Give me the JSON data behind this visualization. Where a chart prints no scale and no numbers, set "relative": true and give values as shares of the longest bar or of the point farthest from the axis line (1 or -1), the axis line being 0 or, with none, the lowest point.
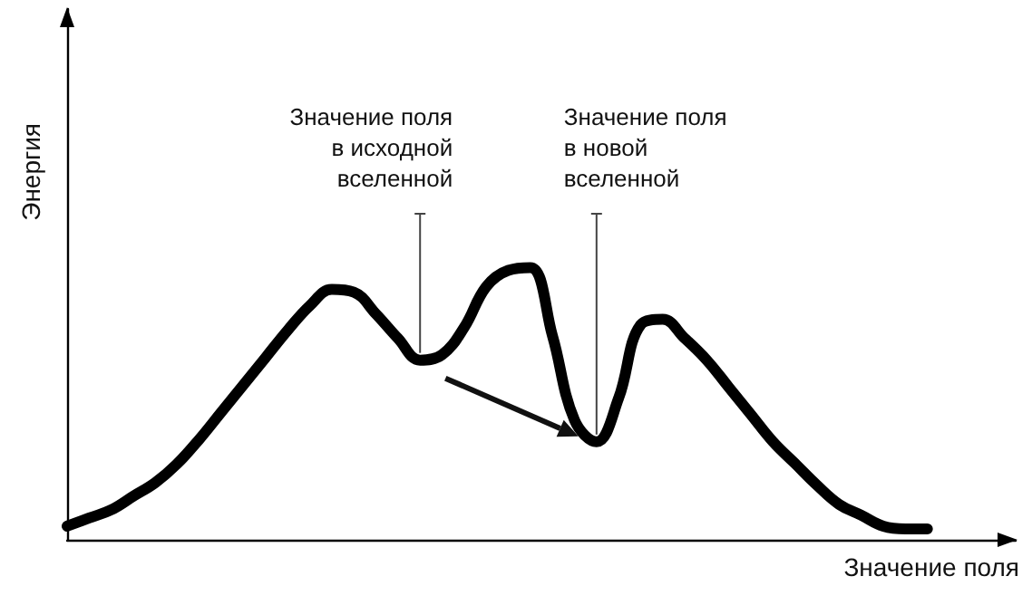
{
  "chart_data": {
    "type": "line",
    "relative": true,
    "xlabel": "Значение поля",
    "ylabel": "Энергия",
    "annotations": [
      "Значение поля\nв исходной\nвселенной",
      "Значение поля\nв новой\nвселенной"
    ],
    "categories": [
      null,
      null,
      null,
      null,
      null,
      null,
      null,
      null,
      null,
      null,
      null,
      null,
      null,
      null,
      null,
      null,
      null,
      null,
      null,
      null,
      null,
      null,
      null,
      null,
      null,
      null,
      null,
      null,
      null,
      null,
      null,
      null,
      null,
      null,
      null,
      null,
      null,
      null,
      null,
      null,
      null,
      null,
      null,
      null
    ],
    "series": [
      {
        "color": "#000000",
        "values": [
          0.05,
          0.08,
          0.11,
          0.16,
          0.21,
          0.28,
          0.37,
          0.47,
          0.57,
          0.67,
          0.77,
          0.86,
          0.92,
          0.91,
          0.83,
          0.74,
          0.66,
          0.68,
          0.78,
          0.93,
          0.99,
          1.0,
          0.75,
          0.44,
          0.36,
          0.52,
          0.79,
          0.81,
          0.74,
          0.66,
          0.56,
          0.46,
          0.36,
          0.28,
          0.2,
          0.13,
          0.09,
          0.05,
          0.04,
          0.04,
          null,
          null,
          null,
          null
        ]
      }
    ],
    "marker": "none",
    "line_style": "solid",
    "grid": false
  }
}
